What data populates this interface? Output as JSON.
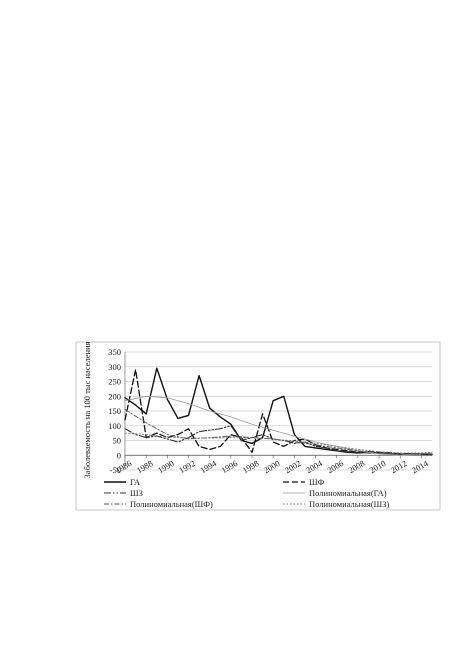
{
  "chart_data": {
    "type": "line",
    "ylabel": "Заболеваемость на 100 тыс населения",
    "ylim": [
      -50,
      350
    ],
    "y_ticks": [
      -50,
      0,
      50,
      100,
      150,
      200,
      250,
      300,
      350
    ],
    "xlim": [
      1986,
      2015
    ],
    "x_ticks": [
      1986,
      1988,
      1990,
      1992,
      1994,
      1996,
      1998,
      2000,
      2002,
      2004,
      2006,
      2008,
      2010,
      2012,
      2014
    ],
    "grid": "horizontal",
    "legend_position": "bottom",
    "series": [
      {
        "name": "ГА",
        "style": "solid",
        "color": "#111111",
        "x": [
          1986,
          1987,
          1988,
          1989,
          1990,
          1991,
          1992,
          1993,
          1994,
          1995,
          1996,
          1997,
          1998,
          1999,
          2000,
          2001,
          2002,
          2003,
          2004,
          2005,
          2006,
          2007,
          2008,
          2009,
          2010,
          2011,
          2012,
          2013,
          2014,
          2015
        ],
        "y": [
          195,
          170,
          140,
          295,
          190,
          125,
          135,
          270,
          160,
          130,
          105,
          50,
          40,
          60,
          185,
          200,
          70,
          30,
          25,
          20,
          15,
          10,
          8,
          10,
          8,
          5,
          3,
          5,
          5,
          3
        ]
      },
      {
        "name": "ШФ",
        "style": "dashed",
        "color": "#111111",
        "x": [
          1986,
          1987,
          1988,
          1989,
          1990,
          1991,
          1992,
          1993,
          1994,
          1995,
          1996,
          1997,
          1998,
          1999,
          2000,
          2001,
          2002,
          2003,
          2004,
          2005,
          2006,
          2007,
          2008,
          2009,
          2010,
          2011,
          2012,
          2013,
          2014,
          2015
        ],
        "y": [
          120,
          290,
          60,
          75,
          60,
          70,
          90,
          30,
          20,
          30,
          70,
          60,
          10,
          140,
          45,
          30,
          50,
          55,
          35,
          25,
          20,
          15,
          10,
          12,
          10,
          8,
          5,
          5,
          3,
          2
        ]
      },
      {
        "name": "ШЗ",
        "style": "dashdotdot",
        "color": "#333333",
        "x": [
          1986,
          1987,
          1988,
          1989,
          1990,
          1991,
          1992,
          1993,
          1994,
          1995,
          1996,
          1997,
          1998,
          1999,
          2000,
          2001,
          2002,
          2003,
          2004,
          2005,
          2006,
          2007,
          2008,
          2009,
          2010,
          2011,
          2012,
          2013,
          2014,
          2015
        ],
        "y": [
          90,
          70,
          60,
          65,
          55,
          45,
          60,
          80,
          85,
          90,
          100,
          50,
          60,
          70,
          55,
          50,
          40,
          45,
          30,
          25,
          15,
          12,
          10,
          8,
          6,
          5,
          4,
          3,
          3,
          2
        ]
      },
      {
        "name": "Полиномиальная (ГА)",
        "style": "thin",
        "color": "#999999",
        "x": [
          1986,
          1988,
          1990,
          1992,
          1994,
          1996,
          1998,
          2000,
          2002,
          2004,
          2006,
          2008,
          2010,
          2012,
          2014,
          2015
        ],
        "y": [
          185,
          200,
          195,
          175,
          150,
          130,
          105,
          85,
          65,
          45,
          30,
          15,
          5,
          0,
          5,
          8
        ]
      },
      {
        "name": "Полиномиальная (ШФ)",
        "style": "dashdot",
        "color": "#555555",
        "x": [
          1986,
          1988,
          1990,
          1992,
          1994,
          1996,
          1998,
          2000,
          2002,
          2004,
          2006,
          2008,
          2010,
          2012,
          2014,
          2015
        ],
        "y": [
          155,
          110,
          70,
          55,
          60,
          65,
          60,
          55,
          45,
          35,
          25,
          15,
          8,
          5,
          5,
          5
        ]
      },
      {
        "name": "Полиномиальная (ШЗ)",
        "style": "dotted",
        "color": "#777777",
        "x": [
          1986,
          1988,
          1990,
          1992,
          1994,
          1996,
          1998,
          2000,
          2002,
          2004,
          2006,
          2008,
          2010,
          2012,
          2014,
          2015
        ],
        "y": [
          75,
          70,
          62,
          58,
          58,
          60,
          58,
          55,
          48,
          40,
          30,
          20,
          12,
          8,
          8,
          10
        ]
      }
    ],
    "legend": [
      {
        "label": "ГА",
        "series": 0
      },
      {
        "label": "ШФ",
        "series": 1
      },
      {
        "label": "ШЗ",
        "series": 2
      },
      {
        "label": "Полиномиальная(ГА)",
        "series": 3
      },
      {
        "label": "Полиномиальная(ШФ)",
        "series": 4
      },
      {
        "label": "Полиномиальная(ШЗ)",
        "series": 5
      }
    ]
  }
}
